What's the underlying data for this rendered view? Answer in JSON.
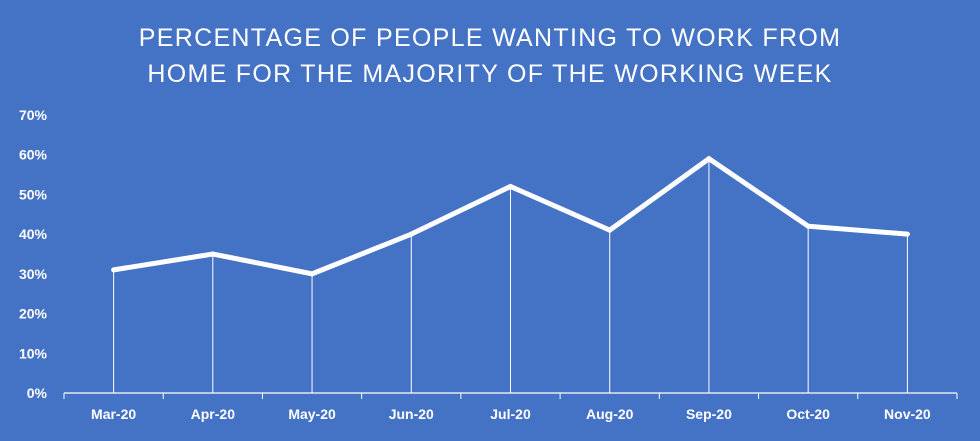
{
  "chart_data": {
    "type": "line",
    "title_lines": [
      "PERCENTAGE OF PEOPLE WANTING TO WORK FROM",
      "HOME FOR THE MAJORITY OF THE WORKING WEEK"
    ],
    "categories": [
      "Mar-20",
      "Apr-20",
      "May-20",
      "Jun-20",
      "Jul-20",
      "Aug-20",
      "Sep-20",
      "Oct-20",
      "Nov-20"
    ],
    "series": [
      {
        "values": [
          31,
          35,
          30,
          40,
          52,
          41,
          59,
          42,
          40
        ]
      }
    ],
    "ylim": [
      0,
      70
    ],
    "y_ticks": [
      "0%",
      "10%",
      "20%",
      "30%",
      "40%",
      "50%",
      "60%",
      "70%"
    ],
    "drop_lines": true,
    "grid": false,
    "legend": "none"
  },
  "colors": {
    "background": "#4472c4",
    "line": "#ffffff",
    "text": "#ffffff",
    "axis": "#ffffff"
  }
}
